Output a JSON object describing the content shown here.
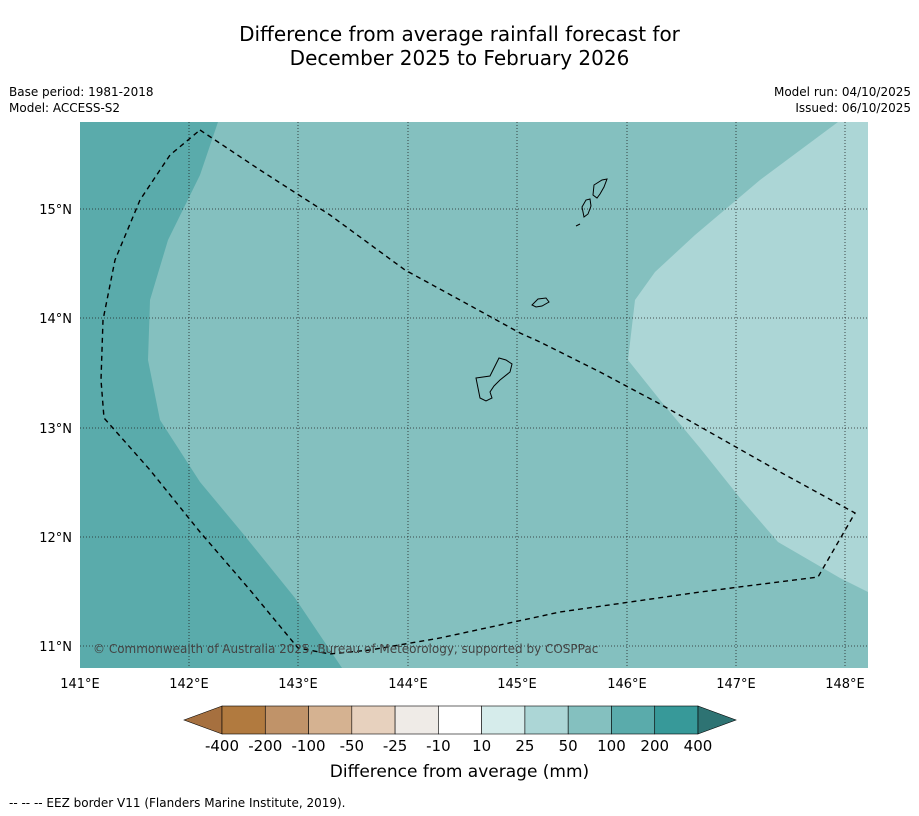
{
  "title_line1": "Difference from average rainfall forecast for",
  "title_line2": "December 2025 to February 2026",
  "base_period": "Base period: 1981-2018",
  "model": "Model: ACCESS-S2",
  "model_run": "Model run: 04/10/2025",
  "issued": "Issued: 06/10/2025",
  "copyright": "© Commonwealth of Australia 2025, Bureau of Meteorology, supported by COSPPac",
  "lon_labels": [
    "141°E",
    "142°E",
    "143°E",
    "144°E",
    "145°E",
    "146°E",
    "147°E",
    "148°E"
  ],
  "lat_labels": [
    "15°N",
    "14°N",
    "13°N",
    "12°N",
    "11°N"
  ],
  "colorbar": {
    "labels": [
      "-400",
      "-200",
      "-100",
      "-50",
      "-25",
      "-10",
      "10",
      "25",
      "50",
      "100",
      "200",
      "400"
    ],
    "colors": [
      "#a6703f",
      "#b17a3f",
      "#c09369",
      "#d5b291",
      "#e7d1be",
      "#efebe7",
      "#ffffff",
      "#d6eceb",
      "#acd6d6",
      "#84c0bf",
      "#5aabab",
      "#379999",
      "#2e7373"
    ],
    "title": "Difference from average (mm)"
  },
  "footnote": "--  --  -- EEZ border V11 (Flanders Marine Institute, 2019)."
}
